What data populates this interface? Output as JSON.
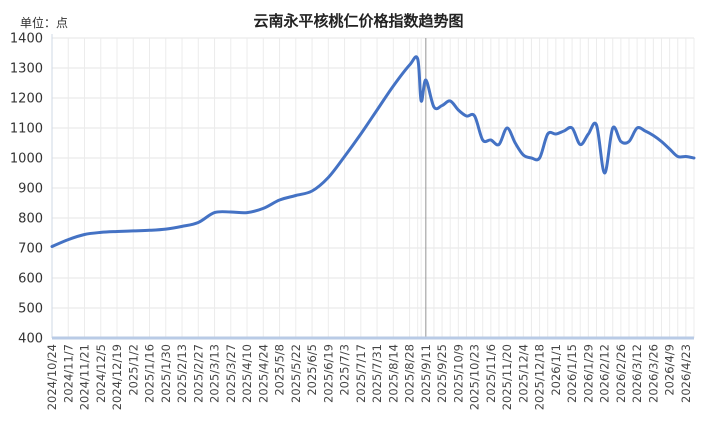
{
  "chart_data": {
    "type": "line",
    "title": "云南永平核桃仁价格指数趋势图",
    "unit_label": "单位：点",
    "ylim": [
      400,
      1400
    ],
    "yticks": [
      400,
      500,
      600,
      700,
      800,
      900,
      1000,
      1100,
      1200,
      1300,
      1400
    ],
    "xtick_labels": [
      "2024/10/24",
      "2024/11/7",
      "2024/11/21",
      "2024/12/5",
      "2024/12/19",
      "2025/1/2",
      "2025/1/16",
      "2025/1/30",
      "2025/2/13",
      "2025/2/27",
      "2025/3/13",
      "2025/3/27",
      "2025/4/10",
      "2025/4/24",
      "2025/5/8",
      "2025/5/22",
      "2025/6/5",
      "2025/6/19",
      "2025/7/3",
      "2025/7/17",
      "2025/7/31",
      "2025/8/14",
      "2025/8/28",
      "2025/9/11",
      "2025/9/25",
      "2025/10/9",
      "2025/10/23",
      "2025/11/6",
      "2025/11/20",
      "2025/12/4",
      "2025/12/18",
      "2026/1/1",
      "2026/1/15",
      "2026/1/29",
      "2026/2/12",
      "2026/2/26",
      "2026/3/12",
      "2026/3/26",
      "2026/4/9",
      "2026/4/23"
    ],
    "grid": true,
    "legend": "none",
    "line_color": "#4472C4",
    "series": [
      {
        "x": [
          "2024/10/24",
          "2024/11/7",
          "2024/11/21",
          "2024/12/5",
          "2024/12/19",
          "2025/1/2",
          "2025/1/16",
          "2025/1/30",
          "2025/2/13",
          "2025/2/27",
          "2025/3/13",
          "2025/3/27",
          "2025/4/10",
          "2025/4/24",
          "2025/5/8",
          "2025/5/22",
          "2025/6/5",
          "2025/6/19",
          "2025/7/3",
          "2025/7/17",
          "2025/7/31",
          "2025/8/14",
          "2025/8/28",
          "2025/9/4",
          "2025/9/7",
          "2025/9/11",
          "2025/9/18",
          "2025/9/25",
          "2025/10/2",
          "2025/10/9",
          "2025/10/16",
          "2025/10/23",
          "2025/10/30",
          "2025/11/6",
          "2025/11/13",
          "2025/11/20",
          "2025/11/27",
          "2025/12/4",
          "2025/12/11",
          "2025/12/18",
          "2025/12/25",
          "2026/1/1",
          "2026/1/8",
          "2026/1/15",
          "2026/1/22",
          "2026/1/29",
          "2026/2/5",
          "2026/2/12",
          "2026/2/19",
          "2026/2/26",
          "2026/3/5",
          "2026/3/12",
          "2026/3/19",
          "2026/3/26",
          "2026/4/2",
          "2026/4/9",
          "2026/4/16",
          "2026/4/23",
          "2026/4/30"
        ],
        "values": [
          705,
          728,
          745,
          752,
          755,
          757,
          759,
          763,
          772,
          785,
          818,
          820,
          818,
          832,
          860,
          875,
          890,
          935,
          1005,
          1080,
          1160,
          1240,
          1310,
          1330,
          1190,
          1260,
          1170,
          1175,
          1190,
          1160,
          1140,
          1140,
          1060,
          1060,
          1045,
          1100,
          1050,
          1010,
          1000,
          1000,
          1080,
          1080,
          1090,
          1100,
          1045,
          1080,
          1110,
          950,
          1100,
          1055,
          1055,
          1100,
          1090,
          1075,
          1055,
          1030,
          1005,
          1005,
          1000
        ]
      }
    ]
  }
}
